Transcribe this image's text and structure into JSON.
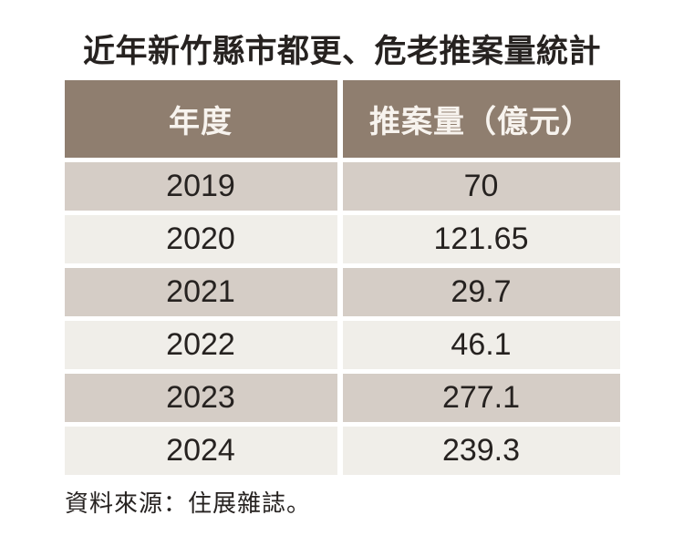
{
  "title": "近年新竹縣市都更、危老推案量統計",
  "table": {
    "headers": [
      "年度",
      "推案量（億元）"
    ],
    "rows": [
      {
        "year": "2019",
        "value": "70"
      },
      {
        "year": "2020",
        "value": "121.65"
      },
      {
        "year": "2021",
        "value": "29.7"
      },
      {
        "year": "2022",
        "value": "46.1"
      },
      {
        "year": "2023",
        "value": "277.1"
      },
      {
        "year": "2024",
        "value": "239.3"
      }
    ]
  },
  "source": "資料來源：住展雜誌。",
  "colors": {
    "page_bg": "#ffffff",
    "header_bg": "#8f7e6f",
    "header_text": "#f7f3ee",
    "row_dark_bg": "#d5cdc6",
    "row_light_bg": "#f0eee9",
    "body_text": "#262220"
  },
  "chart_data": {
    "type": "table",
    "title": "近年新竹縣市都更、危老推案量統計",
    "columns": [
      "年度",
      "推案量（億元）"
    ],
    "categories": [
      "2019",
      "2020",
      "2021",
      "2022",
      "2023",
      "2024"
    ],
    "values": [
      70,
      121.65,
      29.7,
      46.1,
      277.1,
      239.3
    ],
    "unit": "億元",
    "source": "資料來源：住展雜誌。",
    "legend_position": "none",
    "grid": false
  }
}
